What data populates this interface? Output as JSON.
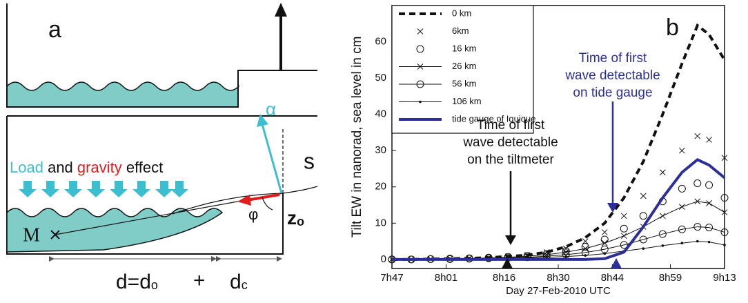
{
  "diagram": {
    "label": "a",
    "alpha": "α",
    "s": "s",
    "load": "Load",
    "and": "and",
    "gravity": "gravity",
    "effect": "effect",
    "phi": "φ",
    "z": "z",
    "z_sub": "o",
    "M": "M",
    "d": "d=d",
    "d_sub": "o",
    "plus": "+",
    "dc": "d",
    "dc_sub": "c"
  },
  "chart_data": {
    "type": "line",
    "panel_label": "b",
    "ylabel": "Tilt EW  in nanorad, sea level in cm",
    "xlabel": "Day 27-Feb-2010 UTC",
    "xlim": [
      467,
      553
    ],
    "ylim": [
      -2.5,
      70
    ],
    "xticks": [
      {
        "value": 467,
        "label": "7h47"
      },
      {
        "value": 481,
        "label": "8h01"
      },
      {
        "value": 496,
        "label": "8h16"
      },
      {
        "value": 510,
        "label": "8h30"
      },
      {
        "value": 524,
        "label": "8h44"
      },
      {
        "value": 539,
        "label": "8h59"
      },
      {
        "value": 553,
        "label": "9h13"
      }
    ],
    "yticks": [
      0,
      10,
      20,
      30,
      40,
      50,
      60
    ],
    "x": [
      467,
      472,
      477,
      482,
      487,
      492,
      497,
      502,
      507,
      512,
      517,
      522,
      527,
      532,
      537,
      542,
      546,
      549,
      553
    ],
    "series": [
      {
        "name": "0 km",
        "color": "#111111",
        "style": "dashed",
        "marker": "none",
        "values": [
          0,
          0,
          0.1,
          0.2,
          0.3,
          0.5,
          0.8,
          1.2,
          2,
          3.5,
          6,
          10,
          17,
          27,
          40,
          54,
          64.5,
          62,
          55
        ]
      },
      {
        "name": "6km",
        "color": "#111111",
        "style": "none",
        "marker": "x",
        "values": [
          0,
          0,
          0.1,
          0.2,
          0.3,
          0.5,
          0.8,
          1.2,
          2,
          3,
          5,
          7.5,
          12,
          17.5,
          24,
          30,
          34,
          33,
          28
        ]
      },
      {
        "name": "16 km",
        "color": "#111111",
        "style": "none",
        "marker": "o",
        "values": [
          0,
          0,
          0.1,
          0.2,
          0.3,
          0.5,
          0.7,
          1,
          1.5,
          2.3,
          3.5,
          5.5,
          8.5,
          12,
          16,
          19.5,
          21,
          20.5,
          17
        ]
      },
      {
        "name": "26 km",
        "color": "#111111",
        "style": "solid",
        "marker": "x",
        "values": [
          0,
          0,
          0.1,
          0.2,
          0.3,
          0.4,
          0.6,
          0.9,
          1.3,
          2,
          3,
          4.5,
          6.5,
          9,
          12,
          14.5,
          16,
          15.5,
          13
        ]
      },
      {
        "name": "56 km",
        "color": "#111111",
        "style": "solid",
        "marker": "o",
        "values": [
          0,
          0,
          0.1,
          0.1,
          0.2,
          0.3,
          0.4,
          0.6,
          0.9,
          1.3,
          1.9,
          2.8,
          4,
          5.5,
          7,
          8.3,
          9,
          8.8,
          7.5
        ]
      },
      {
        "name": "106 km",
        "color": "#111111",
        "style": "solid",
        "marker": "dot",
        "values": [
          0,
          0,
          0,
          0.1,
          0.1,
          0.2,
          0.3,
          0.4,
          0.6,
          0.8,
          1.1,
          1.6,
          2.3,
          3,
          3.8,
          4.5,
          5,
          4.8,
          4
        ]
      },
      {
        "name": "tide gauge of Iquique",
        "color": "#2b2f96",
        "style": "thick",
        "marker": "none",
        "values": [
          0,
          0,
          0,
          0,
          0,
          0,
          0,
          0,
          0,
          0,
          0,
          0.2,
          2,
          9,
          17,
          24,
          27.5,
          26,
          22.5
        ]
      }
    ],
    "annotations": [
      {
        "lines": [
          "Time of first",
          "wave detectable",
          "on the tiltmeter"
        ],
        "color": "#111111"
      },
      {
        "lines": [
          "Time of first",
          "wave detectable",
          "on tide gauge"
        ],
        "color": "#2b2f96"
      }
    ]
  }
}
